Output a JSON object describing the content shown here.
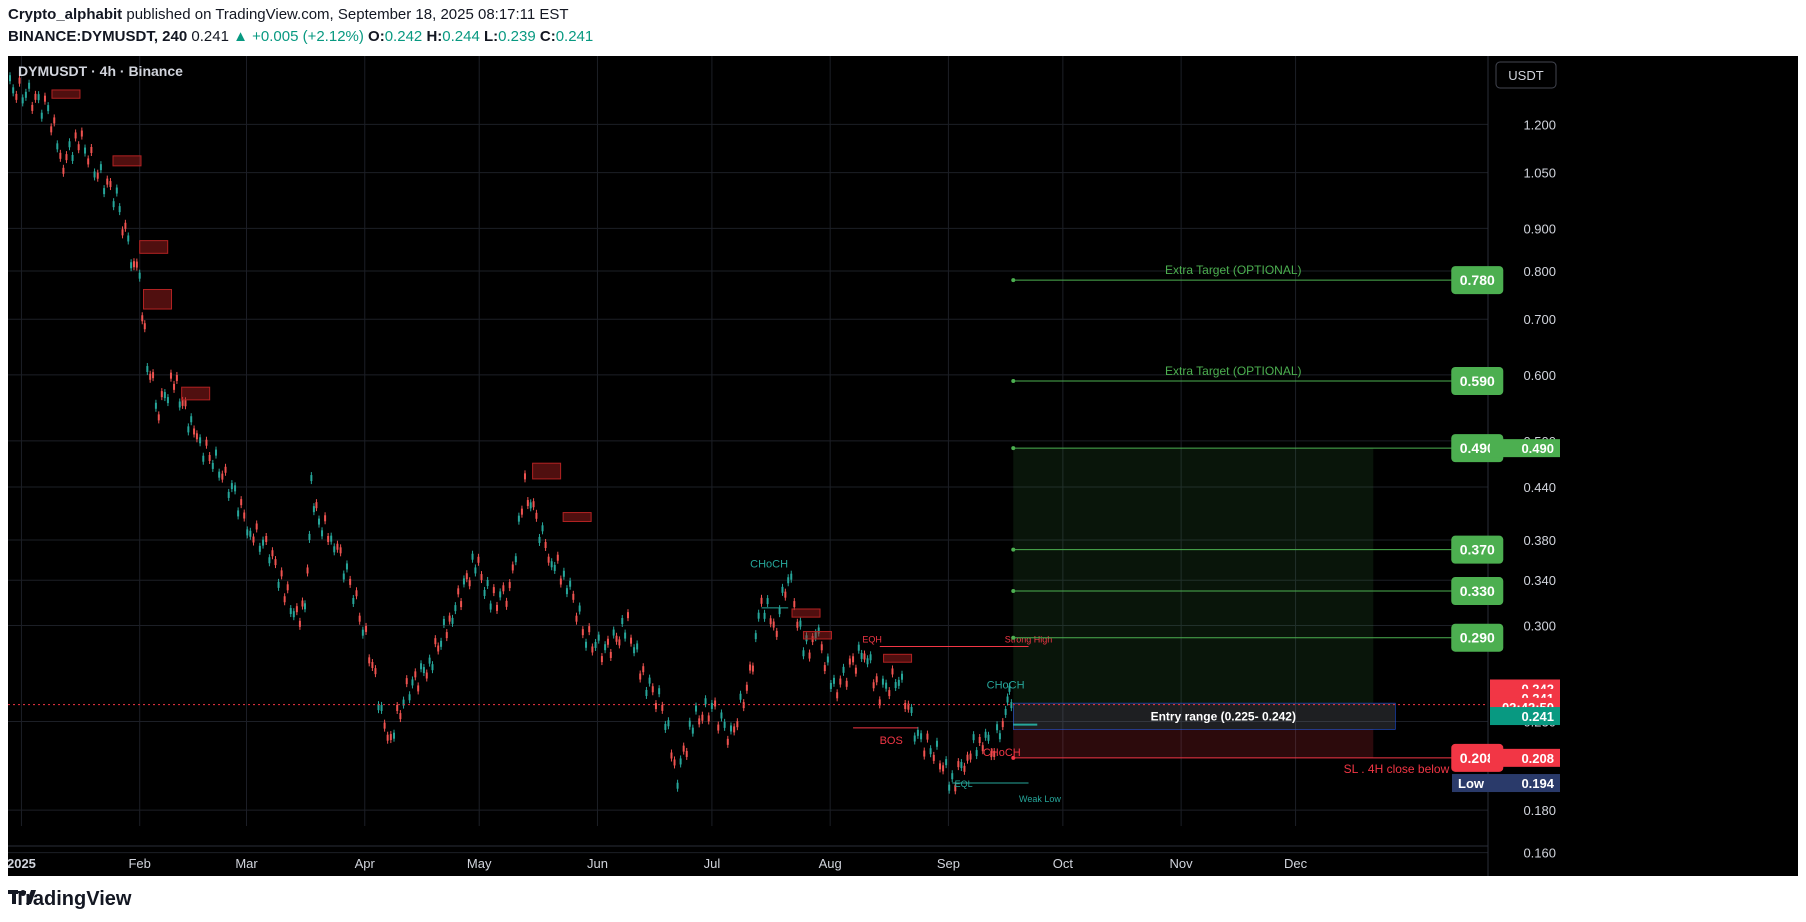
{
  "header": {
    "author": "Crypto_alphabit",
    "published": "published on TradingView.com, September 18, 2025 08:17:11 EST",
    "symbol": "BINANCE:DYMUSDT, 240",
    "last": "0.241",
    "change": "+0.005 (+2.12%)",
    "o_label": "O:",
    "o": "0.242",
    "h_label": "H:",
    "h": "0.244",
    "l_label": "L:",
    "l": "0.239",
    "c_label": "C:",
    "c": "0.241"
  },
  "chart_data": {
    "type": "candlestick",
    "title": "DYMUSDT · 4h · Binance",
    "currency": "USDT",
    "y_scale": "log",
    "ylim": [
      0.15,
      1.45
    ],
    "xlim": [
      "2024-12-29",
      "2025-12-31"
    ],
    "y_ticks": [
      "1.200",
      "1.050",
      "0.900",
      "0.800",
      "0.700",
      "0.600",
      "0.500",
      "0.440",
      "0.380",
      "0.340",
      "0.300",
      "0.230",
      "0.180",
      "0.160"
    ],
    "x_ticks": [
      "2025",
      "Feb",
      "Mar",
      "Apr",
      "May",
      "Jun",
      "Jul",
      "Aug",
      "Sep",
      "Oct",
      "Nov",
      "Dec"
    ],
    "x_tick_dates": [
      "2025-01-01",
      "2025-02-01",
      "2025-03-01",
      "2025-04-01",
      "2025-05-01",
      "2025-06-01",
      "2025-07-01",
      "2025-08-01",
      "2025-09-01",
      "2025-10-01",
      "2025-11-01",
      "2025-12-01"
    ],
    "price_path": [
      [
        "2024-12-29",
        1.33
      ],
      [
        "2025-01-03",
        1.3
      ],
      [
        "2025-01-08",
        1.25
      ],
      [
        "2025-01-12",
        1.08
      ],
      [
        "2025-01-16",
        1.16
      ],
      [
        "2025-01-21",
        1.05
      ],
      [
        "2025-01-26",
        0.98
      ],
      [
        "2025-01-29",
        0.85
      ],
      [
        "2025-02-01",
        0.78
      ],
      [
        "2025-02-03",
        0.62
      ],
      [
        "2025-02-06",
        0.55
      ],
      [
        "2025-02-10",
        0.59
      ],
      [
        "2025-02-16",
        0.5
      ],
      [
        "2025-02-21",
        0.47
      ],
      [
        "2025-02-26",
        0.43
      ],
      [
        "2025-03-02",
        0.39
      ],
      [
        "2025-03-07",
        0.37
      ],
      [
        "2025-03-11",
        0.33
      ],
      [
        "2025-03-15",
        0.3
      ],
      [
        "2025-03-17",
        0.34
      ],
      [
        "2025-03-18",
        0.44
      ],
      [
        "2025-03-20",
        0.4
      ],
      [
        "2025-03-24",
        0.38
      ],
      [
        "2025-03-29",
        0.33
      ],
      [
        "2025-04-03",
        0.27
      ],
      [
        "2025-04-07",
        0.215
      ],
      [
        "2025-04-12",
        0.25
      ],
      [
        "2025-04-18",
        0.27
      ],
      [
        "2025-04-24",
        0.31
      ],
      [
        "2025-04-30",
        0.36
      ],
      [
        "2025-05-04",
        0.32
      ],
      [
        "2025-05-09",
        0.33
      ],
      [
        "2025-05-13",
        0.44
      ],
      [
        "2025-05-16",
        0.4
      ],
      [
        "2025-05-20",
        0.36
      ],
      [
        "2025-05-24",
        0.34
      ],
      [
        "2025-05-29",
        0.29
      ],
      [
        "2025-06-03",
        0.28
      ],
      [
        "2025-06-09",
        0.3
      ],
      [
        "2025-06-13",
        0.26
      ],
      [
        "2025-06-18",
        0.24
      ],
      [
        "2025-06-22",
        0.198
      ],
      [
        "2025-06-26",
        0.23
      ],
      [
        "2025-07-01",
        0.24
      ],
      [
        "2025-07-06",
        0.22
      ],
      [
        "2025-07-11",
        0.26
      ],
      [
        "2025-07-14",
        0.32
      ],
      [
        "2025-07-18",
        0.3
      ],
      [
        "2025-07-21",
        0.35
      ],
      [
        "2025-07-25",
        0.28
      ],
      [
        "2025-07-29",
        0.29
      ],
      [
        "2025-08-02",
        0.25
      ],
      [
        "2025-08-07",
        0.27
      ],
      [
        "2025-08-10",
        0.28
      ],
      [
        "2025-08-14",
        0.25
      ],
      [
        "2025-08-19",
        0.26
      ],
      [
        "2025-08-24",
        0.22
      ],
      [
        "2025-08-29",
        0.21
      ],
      [
        "2025-09-02",
        0.194
      ],
      [
        "2025-09-06",
        0.21
      ],
      [
        "2025-09-10",
        0.22
      ],
      [
        "2025-09-13",
        0.215
      ],
      [
        "2025-09-16",
        0.235
      ],
      [
        "2025-09-17",
        0.245
      ],
      [
        "2025-09-18",
        0.241
      ]
    ],
    "levels": [
      {
        "label": "0.780",
        "value": 0.78,
        "color": "#4caf50",
        "text": "Extra Target (OPTIONAL)"
      },
      {
        "label": "0.590",
        "value": 0.59,
        "color": "#4caf50",
        "text": "Extra Target (OPTIONAL)"
      },
      {
        "label": "0.490",
        "value": 0.49,
        "color": "#4caf50",
        "text": ""
      },
      {
        "label": "0.370",
        "value": 0.37,
        "color": "#4caf50",
        "text": ""
      },
      {
        "label": "0.330",
        "value": 0.33,
        "color": "#4caf50",
        "text": ""
      },
      {
        "label": "0.290",
        "value": 0.29,
        "color": "#4caf50",
        "text": ""
      },
      {
        "label": "0.208",
        "value": 0.208,
        "color": "#f23645",
        "text": "SL . 4H close below"
      }
    ],
    "entry_range": {
      "text": "Entry range   (0.225- 0.242)",
      "low": 0.225,
      "high": 0.242
    },
    "annotations": [
      {
        "text": "CHoCH",
        "date": "2025-07-16",
        "value": 0.352,
        "color": "#26a69a"
      },
      {
        "text": "EQH",
        "date": "2025-08-12",
        "value": 0.286,
        "color": "#f23645"
      },
      {
        "text": "BOS",
        "date": "2025-08-17",
        "value": 0.216,
        "color": "#f23645"
      },
      {
        "text": "Strong High",
        "date": "2025-09-22",
        "value": 0.286,
        "color": "#f23645"
      },
      {
        "text": "CHoCH",
        "date": "2025-09-16",
        "value": 0.252,
        "color": "#26a69a"
      },
      {
        "text": "CHoCH",
        "date": "2025-09-15",
        "value": 0.209,
        "color": "#f23645"
      },
      {
        "text": "EQL",
        "date": "2025-09-05",
        "value": 0.192,
        "color": "#26a69a"
      },
      {
        "text": "Weak Low",
        "date": "2025-09-25",
        "value": 0.184,
        "color": "#26a69a"
      }
    ],
    "axis_badges": [
      {
        "label": "0.490",
        "value": 0.49,
        "color": "#4caf50"
      },
      {
        "label": "0.242",
        "value": 0.252,
        "color": "#f23645"
      },
      {
        "label": "0.241",
        "value": 0.2455,
        "color": "#f23645"
      },
      {
        "label": "02:42:50",
        "value": 0.2395,
        "color": "#f23645"
      },
      {
        "label": "0.241",
        "value": 0.2335,
        "color": "#089981"
      },
      {
        "label": "0.208",
        "value": 0.208,
        "color": "#f23645"
      },
      {
        "label": "0.194",
        "value": 0.194,
        "color": "#2a3a6a",
        "prefix": "Low"
      }
    ],
    "current_price": 0.241
  },
  "footer": {
    "brand": "TradingView"
  }
}
